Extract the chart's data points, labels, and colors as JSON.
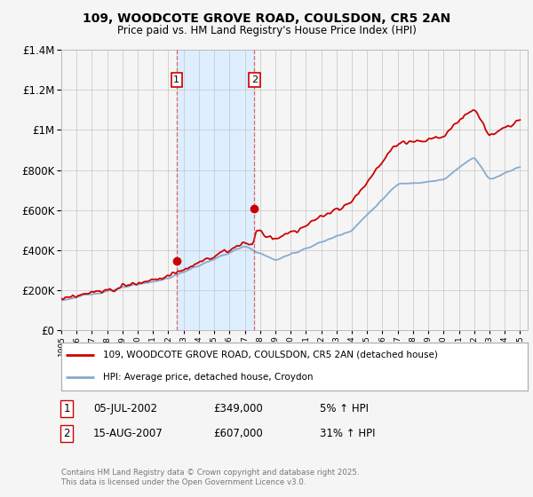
{
  "title_line1": "109, WOODCOTE GROVE ROAD, COULSDON, CR5 2AN",
  "title_line2": "Price paid vs. HM Land Registry's House Price Index (HPI)",
  "y_ticks": [
    0,
    200000,
    400000,
    600000,
    800000,
    1000000,
    1200000,
    1400000
  ],
  "y_tick_labels": [
    "£0",
    "£200K",
    "£400K",
    "£600K",
    "£800K",
    "£1M",
    "£1.2M",
    "£1.4M"
  ],
  "sale1_year": 2002.54,
  "sale1_price": 349000,
  "sale1_label": "1",
  "sale1_date": "05-JUL-2002",
  "sale1_hpi": "5% ↑ HPI",
  "sale2_year": 2007.62,
  "sale2_price": 607000,
  "sale2_label": "2",
  "sale2_date": "15-AUG-2007",
  "sale2_hpi": "31% ↑ HPI",
  "background_color": "#f5f5f5",
  "plot_bg_color": "#f5f5f5",
  "grid_color": "#cccccc",
  "red_line_color": "#cc0000",
  "blue_line_color": "#88aacc",
  "vline_color": "#cc0000",
  "highlight_box_color": "#ddeeff",
  "legend_label_red": "109, WOODCOTE GROVE ROAD, COULSDON, CR5 2AN (detached house)",
  "legend_label_blue": "HPI: Average price, detached house, Croydon",
  "footer_text": "Contains HM Land Registry data © Crown copyright and database right 2025.\nThis data is licensed under the Open Government Licence v3.0."
}
